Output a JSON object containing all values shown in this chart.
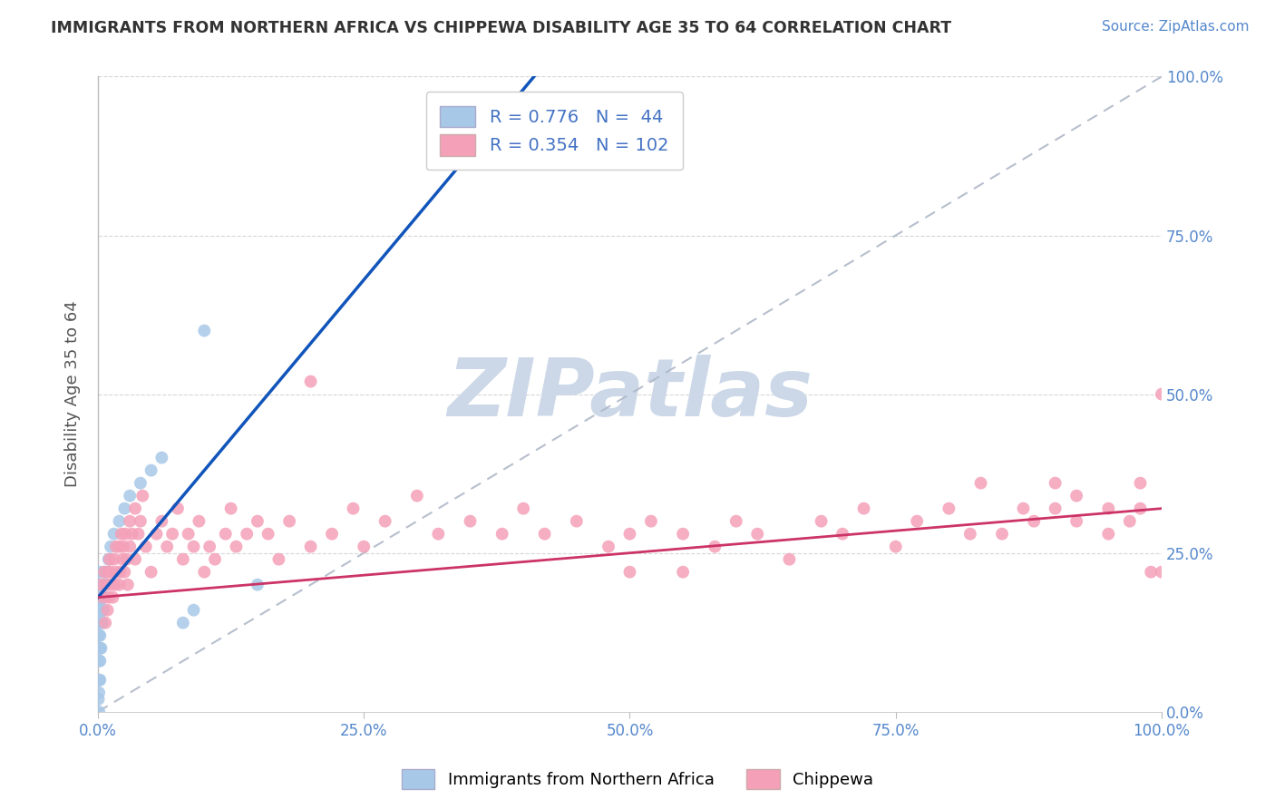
{
  "title": "IMMIGRANTS FROM NORTHERN AFRICA VS CHIPPEWA DISABILITY AGE 35 TO 64 CORRELATION CHART",
  "source_text": "Source: ZipAtlas.com",
  "ylabel": "Disability Age 35 to 64",
  "watermark": "ZIPatlas",
  "blue_R": 0.776,
  "blue_N": 44,
  "pink_R": 0.354,
  "pink_N": 102,
  "blue_label": "Immigrants from Northern Africa",
  "pink_label": "Chippewa",
  "blue_dot_color": "#a8c8e8",
  "pink_dot_color": "#f4a0b8",
  "blue_line_color": "#1155bb",
  "pink_line_color": "#cc3366",
  "blue_scatter": [
    [
      0.05,
      2.0
    ],
    [
      0.1,
      3.0
    ],
    [
      0.1,
      5.0
    ],
    [
      0.1,
      8.0
    ],
    [
      0.1,
      10.0
    ],
    [
      0.1,
      12.0
    ],
    [
      0.1,
      15.0
    ],
    [
      0.1,
      17.0
    ],
    [
      0.1,
      18.0
    ],
    [
      0.1,
      20.0
    ],
    [
      0.1,
      22.0
    ],
    [
      0.1,
      0.0
    ],
    [
      0.2,
      5.0
    ],
    [
      0.2,
      8.0
    ],
    [
      0.2,
      10.0
    ],
    [
      0.2,
      12.0
    ],
    [
      0.2,
      14.0
    ],
    [
      0.2,
      16.0
    ],
    [
      0.2,
      18.0
    ],
    [
      0.3,
      10.0
    ],
    [
      0.3,
      14.0
    ],
    [
      0.3,
      18.0
    ],
    [
      0.3,
      20.0
    ],
    [
      0.4,
      14.0
    ],
    [
      0.4,
      18.0
    ],
    [
      0.5,
      16.0
    ],
    [
      0.5,
      20.0
    ],
    [
      0.6,
      18.0
    ],
    [
      0.6,
      22.0
    ],
    [
      0.7,
      20.0
    ],
    [
      0.8,
      22.0
    ],
    [
      1.0,
      24.0
    ],
    [
      1.2,
      26.0
    ],
    [
      1.5,
      28.0
    ],
    [
      2.0,
      30.0
    ],
    [
      2.5,
      32.0
    ],
    [
      3.0,
      34.0
    ],
    [
      4.0,
      36.0
    ],
    [
      5.0,
      38.0
    ],
    [
      6.0,
      40.0
    ],
    [
      8.0,
      14.0
    ],
    [
      9.0,
      16.0
    ],
    [
      10.0,
      60.0
    ],
    [
      15.0,
      20.0
    ]
  ],
  "pink_scatter": [
    [
      0.3,
      20.0
    ],
    [
      0.5,
      18.0
    ],
    [
      0.6,
      22.0
    ],
    [
      0.7,
      14.0
    ],
    [
      0.8,
      20.0
    ],
    [
      0.9,
      16.0
    ],
    [
      1.0,
      22.0
    ],
    [
      1.0,
      18.0
    ],
    [
      1.1,
      24.0
    ],
    [
      1.2,
      20.0
    ],
    [
      1.3,
      22.0
    ],
    [
      1.4,
      18.0
    ],
    [
      1.5,
      24.0
    ],
    [
      1.6,
      20.0
    ],
    [
      1.7,
      26.0
    ],
    [
      1.8,
      22.0
    ],
    [
      2.0,
      20.0
    ],
    [
      2.0,
      26.0
    ],
    [
      2.1,
      22.0
    ],
    [
      2.2,
      28.0
    ],
    [
      2.3,
      24.0
    ],
    [
      2.4,
      26.0
    ],
    [
      2.5,
      22.0
    ],
    [
      2.6,
      28.0
    ],
    [
      2.7,
      24.0
    ],
    [
      2.8,
      20.0
    ],
    [
      3.0,
      26.0
    ],
    [
      3.0,
      30.0
    ],
    [
      3.2,
      28.0
    ],
    [
      3.5,
      32.0
    ],
    [
      3.5,
      24.0
    ],
    [
      3.8,
      28.0
    ],
    [
      4.0,
      30.0
    ],
    [
      4.2,
      34.0
    ],
    [
      4.5,
      26.0
    ],
    [
      5.0,
      22.0
    ],
    [
      5.5,
      28.0
    ],
    [
      6.0,
      30.0
    ],
    [
      6.5,
      26.0
    ],
    [
      7.0,
      28.0
    ],
    [
      7.5,
      32.0
    ],
    [
      8.0,
      24.0
    ],
    [
      8.5,
      28.0
    ],
    [
      9.0,
      26.0
    ],
    [
      9.5,
      30.0
    ],
    [
      10.0,
      22.0
    ],
    [
      10.5,
      26.0
    ],
    [
      11.0,
      24.0
    ],
    [
      12.0,
      28.0
    ],
    [
      12.5,
      32.0
    ],
    [
      13.0,
      26.0
    ],
    [
      14.0,
      28.0
    ],
    [
      15.0,
      30.0
    ],
    [
      16.0,
      28.0
    ],
    [
      17.0,
      24.0
    ],
    [
      18.0,
      30.0
    ],
    [
      20.0,
      26.0
    ],
    [
      22.0,
      28.0
    ],
    [
      24.0,
      32.0
    ],
    [
      25.0,
      26.0
    ],
    [
      27.0,
      30.0
    ],
    [
      30.0,
      34.0
    ],
    [
      32.0,
      28.0
    ],
    [
      35.0,
      30.0
    ],
    [
      38.0,
      28.0
    ],
    [
      40.0,
      32.0
    ],
    [
      42.0,
      28.0
    ],
    [
      45.0,
      30.0
    ],
    [
      48.0,
      26.0
    ],
    [
      50.0,
      28.0
    ],
    [
      50.0,
      22.0
    ],
    [
      52.0,
      30.0
    ],
    [
      55.0,
      28.0
    ],
    [
      55.0,
      22.0
    ],
    [
      58.0,
      26.0
    ],
    [
      60.0,
      30.0
    ],
    [
      62.0,
      28.0
    ],
    [
      65.0,
      24.0
    ],
    [
      68.0,
      30.0
    ],
    [
      70.0,
      28.0
    ],
    [
      72.0,
      32.0
    ],
    [
      75.0,
      26.0
    ],
    [
      77.0,
      30.0
    ],
    [
      80.0,
      32.0
    ],
    [
      82.0,
      28.0
    ],
    [
      83.0,
      36.0
    ],
    [
      85.0,
      28.0
    ],
    [
      87.0,
      32.0
    ],
    [
      88.0,
      30.0
    ],
    [
      90.0,
      32.0
    ],
    [
      90.0,
      36.0
    ],
    [
      92.0,
      30.0
    ],
    [
      92.0,
      34.0
    ],
    [
      95.0,
      28.0
    ],
    [
      95.0,
      32.0
    ],
    [
      97.0,
      30.0
    ],
    [
      98.0,
      32.0
    ],
    [
      98.0,
      36.0
    ],
    [
      99.0,
      22.0
    ],
    [
      100.0,
      22.0
    ],
    [
      20.0,
      52.0
    ],
    [
      100.0,
      50.0
    ]
  ],
  "xlim": [
    0,
    100
  ],
  "ylim": [
    0,
    100
  ],
  "x_ticks": [
    0,
    25,
    50,
    75,
    100
  ],
  "x_tick_labels": [
    "0.0%",
    "25.0%",
    "50.0%",
    "75.0%",
    "100.0%"
  ],
  "y_ticks": [
    0,
    25,
    50,
    75,
    100
  ],
  "y_tick_labels_right": [
    "0.0%",
    "25.0%",
    "50.0%",
    "75.0%",
    "100.0%"
  ],
  "background_color": "#ffffff",
  "grid_color": "#cccccc",
  "title_color": "#333333",
  "watermark_color": "#ccd8e8",
  "axis_label_color": "#555555",
  "tick_color": "#5588cc",
  "blue_line_intercept": 18.0,
  "blue_line_slope": 2.0,
  "pink_line_intercept": 18.0,
  "pink_line_slope": 0.14
}
